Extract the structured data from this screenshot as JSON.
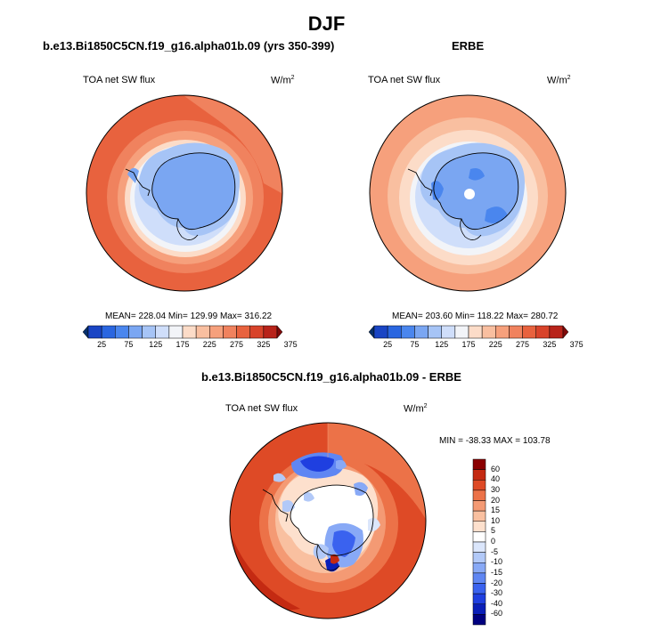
{
  "page": {
    "season": "DJF"
  },
  "panels": [
    {
      "id": "model",
      "header": "b.e13.Bi1850C5CN.f19_g16.alpha01b.09 (yrs 350-399)",
      "variable": "TOA net SW flux",
      "units": "W/m",
      "units_sup": "2",
      "stats": "MEAN= 228.04   Min= 129.99   Max= 316.22",
      "colorbar_labels": [
        "25",
        "75",
        "125",
        "175",
        "225",
        "275",
        "325",
        "375"
      ]
    },
    {
      "id": "obs",
      "header": "ERBE",
      "variable": "TOA net SW flux",
      "units": "W/m",
      "units_sup": "2",
      "stats": "MEAN= 203.60   Min= 118.22   Max= 280.72",
      "colorbar_labels": [
        "25",
        "75",
        "125",
        "175",
        "225",
        "275",
        "325",
        "375"
      ]
    },
    {
      "id": "diff",
      "header": "b.e13.Bi1850C5CN.f19_g16.alpha01b.09 - ERBE",
      "variable": "TOA net SW flux",
      "units": "W/m",
      "units_sup": "2",
      "stats": "MIN = -38.33  MAX = 103.78",
      "colorbar_labels": [
        "60",
        "40",
        "30",
        "20",
        "15",
        "10",
        "5",
        "0",
        "-5",
        "-10",
        "-15",
        "-20",
        "-30",
        "-40",
        "-60"
      ]
    }
  ],
  "colors": {
    "abs_scale": [
      "#08306b",
      "#1a45c4",
      "#2a66e0",
      "#4a86ee",
      "#7aa6f2",
      "#a6c4f6",
      "#cfdefa",
      "#f2f4f8",
      "#fcdcc8",
      "#f9bfa0",
      "#f6a07c",
      "#f0825e",
      "#e8623e",
      "#d8432a",
      "#b8231a",
      "#7f0a0a"
    ],
    "diff_scale": [
      "#000080",
      "#0a1fb8",
      "#1f3fe0",
      "#3a62ef",
      "#5f86f3",
      "#88a9f6",
      "#b2c9f8",
      "#dbe6fb",
      "#ffffff",
      "#fde0cd",
      "#f9c0a0",
      "#f49a74",
      "#ec7248",
      "#de4a26",
      "#c42a12",
      "#8b0000"
    ]
  }
}
